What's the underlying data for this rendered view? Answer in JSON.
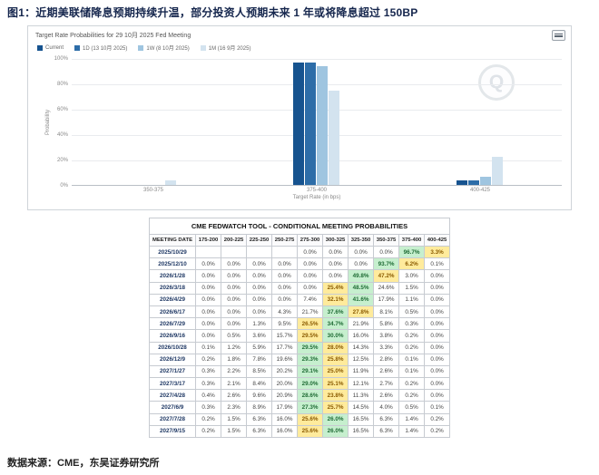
{
  "page": {
    "title": "图1：近期美联储降息预期持续升温，部分投资人预期未来 1 年或将降息超过 150BP",
    "source": "数据来源：CME，东吴证券研究所"
  },
  "chart": {
    "title": "Target Rate Probabilities for 29 10月 2025 Fed Meeting",
    "menu_icon": "hamburger-menu-icon",
    "watermark_letter": "Q",
    "ylabel": "Probability",
    "xlabel": "Target Rate (in bps)"
  },
  "chart_data": {
    "type": "bar",
    "title": "Target Rate Probabilities for 29 10月 2025 Fed Meeting",
    "categories": [
      "350-375",
      "375-400",
      "400-425"
    ],
    "series": [
      {
        "name": "Current",
        "color": "#16538f",
        "values": [
          0.0,
          96.7,
          3.3
        ]
      },
      {
        "name": "1D (13 10月 2025)",
        "color": "#2d6da8",
        "values": [
          0.0,
          96.5,
          3.5
        ]
      },
      {
        "name": "1W (8 10月 2025)",
        "color": "#9fc5e0",
        "values": [
          0.0,
          93.8,
          6.2
        ]
      },
      {
        "name": "1M (16 9月 2025)",
        "color": "#d3e3ef",
        "values": [
          3.5,
          74.3,
          22.2
        ]
      }
    ],
    "xlabel": "Target Rate (in bps)",
    "ylabel": "Probability",
    "ylim": [
      0,
      100
    ],
    "yticks_percent": [
      0,
      20,
      40,
      60,
      80,
      100
    ],
    "grid": true,
    "legend_position": "top-left"
  },
  "table": {
    "title": "CME FEDWATCH TOOL - CONDITIONAL MEETING PROBABILITIES",
    "columns": [
      "MEETING DATE",
      "175-200",
      "200-225",
      "225-250",
      "250-275",
      "275-300",
      "300-325",
      "325-350",
      "350-375",
      "375-400",
      "400-425"
    ],
    "highlight_colors": {
      "max": "#c6efce",
      "second": "#ffeb9c"
    },
    "rows": [
      {
        "date": "2025/10/29",
        "values": [
          "",
          "",
          "",
          "",
          "0.0%",
          "0.0%",
          "0.0%",
          "0.0%",
          "96.7%",
          "3.3%"
        ]
      },
      {
        "date": "2025/12/10",
        "values": [
          "0.0%",
          "0.0%",
          "0.0%",
          "0.0%",
          "0.0%",
          "0.0%",
          "0.0%",
          "93.7%",
          "6.2%",
          "0.1%"
        ]
      },
      {
        "date": "2026/1/28",
        "values": [
          "0.0%",
          "0.0%",
          "0.0%",
          "0.0%",
          "0.0%",
          "0.0%",
          "49.8%",
          "47.2%",
          "3.0%",
          "0.0%"
        ]
      },
      {
        "date": "2026/3/18",
        "values": [
          "0.0%",
          "0.0%",
          "0.0%",
          "0.0%",
          "0.0%",
          "25.4%",
          "48.5%",
          "24.6%",
          "1.5%",
          "0.0%"
        ]
      },
      {
        "date": "2026/4/29",
        "values": [
          "0.0%",
          "0.0%",
          "0.0%",
          "0.0%",
          "7.4%",
          "32.1%",
          "41.6%",
          "17.9%",
          "1.1%",
          "0.0%"
        ]
      },
      {
        "date": "2026/6/17",
        "values": [
          "0.0%",
          "0.0%",
          "0.0%",
          "4.3%",
          "21.7%",
          "37.6%",
          "27.8%",
          "8.1%",
          "0.5%",
          "0.0%"
        ]
      },
      {
        "date": "2026/7/29",
        "values": [
          "0.0%",
          "0.0%",
          "1.3%",
          "9.5%",
          "26.5%",
          "34.7%",
          "21.9%",
          "5.8%",
          "0.3%",
          "0.0%"
        ]
      },
      {
        "date": "2026/9/16",
        "values": [
          "0.0%",
          "0.5%",
          "3.6%",
          "15.7%",
          "29.5%",
          "30.0%",
          "16.0%",
          "3.8%",
          "0.2%",
          "0.0%"
        ]
      },
      {
        "date": "2026/10/28",
        "values": [
          "0.1%",
          "1.2%",
          "5.9%",
          "17.7%",
          "29.5%",
          "28.0%",
          "14.3%",
          "3.3%",
          "0.2%",
          "0.0%"
        ]
      },
      {
        "date": "2026/12/9",
        "values": [
          "0.2%",
          "1.8%",
          "7.8%",
          "19.6%",
          "29.3%",
          "25.8%",
          "12.5%",
          "2.8%",
          "0.1%",
          "0.0%"
        ]
      },
      {
        "date": "2027/1/27",
        "values": [
          "0.3%",
          "2.2%",
          "8.5%",
          "20.2%",
          "29.1%",
          "25.0%",
          "11.9%",
          "2.6%",
          "0.1%",
          "0.0%"
        ]
      },
      {
        "date": "2027/3/17",
        "values": [
          "0.3%",
          "2.1%",
          "8.4%",
          "20.0%",
          "29.0%",
          "25.1%",
          "12.1%",
          "2.7%",
          "0.2%",
          "0.0%"
        ]
      },
      {
        "date": "2027/4/28",
        "values": [
          "0.4%",
          "2.6%",
          "9.6%",
          "20.9%",
          "28.6%",
          "23.8%",
          "11.3%",
          "2.6%",
          "0.2%",
          "0.0%"
        ]
      },
      {
        "date": "2027/6/9",
        "values": [
          "0.3%",
          "2.3%",
          "8.9%",
          "17.9%",
          "27.3%",
          "25.7%",
          "14.5%",
          "4.0%",
          "0.5%",
          "0.1%"
        ]
      },
      {
        "date": "2027/7/28",
        "values": [
          "0.2%",
          "1.5%",
          "6.3%",
          "16.0%",
          "25.6%",
          "26.0%",
          "16.5%",
          "6.3%",
          "1.4%",
          "0.2%"
        ]
      },
      {
        "date": "2027/9/15",
        "values": [
          "0.2%",
          "1.5%",
          "6.3%",
          "16.0%",
          "25.6%",
          "26.0%",
          "16.5%",
          "6.3%",
          "1.4%",
          "0.2%"
        ]
      }
    ]
  }
}
